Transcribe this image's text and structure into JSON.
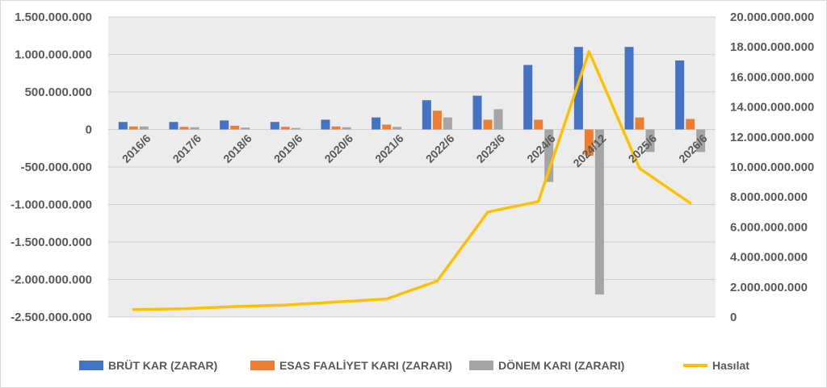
{
  "chart_data": {
    "type": "bar+line",
    "categories": [
      "2016/6",
      "2017/6",
      "2018/6",
      "2019/6",
      "2020/6",
      "2021/6",
      "2022/6",
      "2023/6",
      "2024/6",
      "2024/12",
      "2025/6",
      "2026/6"
    ],
    "series": [
      {
        "name": "BRÜT KAR (ZARAR)",
        "type": "bar",
        "axis": "left",
        "color": "#4472C4",
        "values": [
          100000000,
          100000000,
          120000000,
          100000000,
          130000000,
          160000000,
          390000000,
          450000000,
          860000000,
          1100000000,
          1100000000,
          920000000
        ]
      },
      {
        "name": "ESAS FAALİYET KARI (ZARARI)",
        "type": "bar",
        "axis": "left",
        "color": "#ED7D31",
        "values": [
          40000000,
          35000000,
          50000000,
          35000000,
          40000000,
          65000000,
          250000000,
          130000000,
          130000000,
          -350000000,
          160000000,
          140000000
        ]
      },
      {
        "name": "DÖNEM KARI (ZARARI)",
        "type": "bar",
        "axis": "left",
        "color": "#A5A5A5",
        "values": [
          40000000,
          30000000,
          25000000,
          20000000,
          30000000,
          35000000,
          160000000,
          270000000,
          -700000000,
          -2200000000,
          -300000000,
          -300000000
        ]
      },
      {
        "name": "Hasılat",
        "type": "line",
        "axis": "right",
        "color": "#FFC000",
        "values": [
          500000000,
          550000000,
          700000000,
          800000000,
          1000000000,
          1200000000,
          2400000000,
          7000000000,
          7700000000,
          17700000000,
          9900000000,
          7600000000
        ]
      }
    ],
    "y_left": {
      "ylim": [
        -2500000000,
        1500000000
      ],
      "ticks": [
        1500000000,
        1000000000,
        500000000,
        0,
        -500000000,
        -1000000000,
        -1500000000,
        -2000000000,
        -2500000000
      ],
      "tick_labels": [
        "1.500.000.000",
        "1.000.000.000",
        "500.000.000",
        "0",
        "-500.000.000",
        "-1.000.000.000",
        "-1.500.000.000",
        "-2.000.000.000",
        "-2.500.000.000"
      ]
    },
    "y_right": {
      "ylim": [
        0,
        20000000000
      ],
      "ticks": [
        20000000000,
        18000000000,
        16000000000,
        14000000000,
        12000000000,
        10000000000,
        8000000000,
        6000000000,
        4000000000,
        2000000000,
        0
      ],
      "tick_labels": [
        "20.000.000.000",
        "18.000.000.000",
        "16.000.000.000",
        "14.000.000.000",
        "12.000.000.000",
        "10.000.000.000",
        "8.000.000.000",
        "6.000.000.000",
        "4.000.000.000",
        "2.000.000.000",
        "0"
      ]
    },
    "grid": true,
    "legend": "bottom",
    "plot_background": "#ececec"
  }
}
